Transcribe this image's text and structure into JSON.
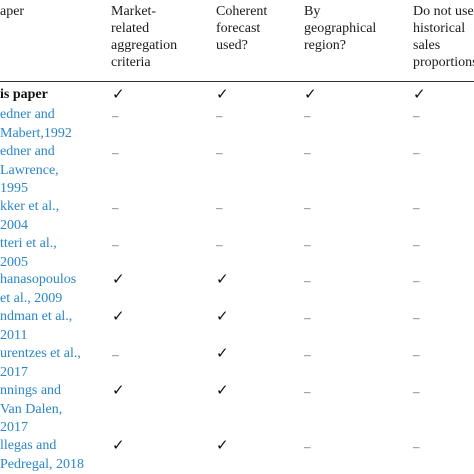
{
  "columns": [
    {
      "id": "paper",
      "label": "aper"
    },
    {
      "id": "market",
      "label": "Market-\nrelated\naggregation\ncriteria"
    },
    {
      "id": "coherent",
      "label": "Coherent\nforecast\nused?"
    },
    {
      "id": "geo",
      "label": "By\ngeographical\nregion?"
    },
    {
      "id": "hist",
      "label": "Do not use\nhistorical\nsales\nproportions"
    }
  ],
  "rows": [
    {
      "paper": "is paper",
      "self": true,
      "market": "✓",
      "coherent": "✓",
      "geo": "✓",
      "hist": "✓"
    },
    {
      "paper": "edner and\nMabert,1992",
      "market": "–",
      "coherent": "–",
      "geo": "–",
      "hist": "–"
    },
    {
      "paper": "edner and\nLawrence,\n1995",
      "market": "–",
      "coherent": "–",
      "geo": "–",
      "hist": "–"
    },
    {
      "paper": "kker et al.,\n2004",
      "market": "–",
      "coherent": "–",
      "geo": "–",
      "hist": "–"
    },
    {
      "paper": "tteri et al.,\n2005",
      "market": "–",
      "coherent": "–",
      "geo": "–",
      "hist": "–"
    },
    {
      "paper": "hanasopoulos\net al., 2009",
      "market": "✓",
      "coherent": "✓",
      "geo": "–",
      "hist": "–"
    },
    {
      "paper": "ndman et al.,\n2011",
      "market": "✓",
      "coherent": "✓",
      "geo": "–",
      "hist": "–"
    },
    {
      "paper": "urentzes et al.,\n2017",
      "market": "–",
      "coherent": "✓",
      "geo": "–",
      "hist": "–"
    },
    {
      "paper": "nnings and\nVan Dalen,\n2017",
      "market": "✓",
      "coherent": "✓",
      "geo": "–",
      "hist": "–"
    },
    {
      "paper": "llegas and\nPedregal, 2018",
      "market": "✓",
      "coherent": "✓",
      "geo": "–",
      "hist": "–"
    }
  ]
}
